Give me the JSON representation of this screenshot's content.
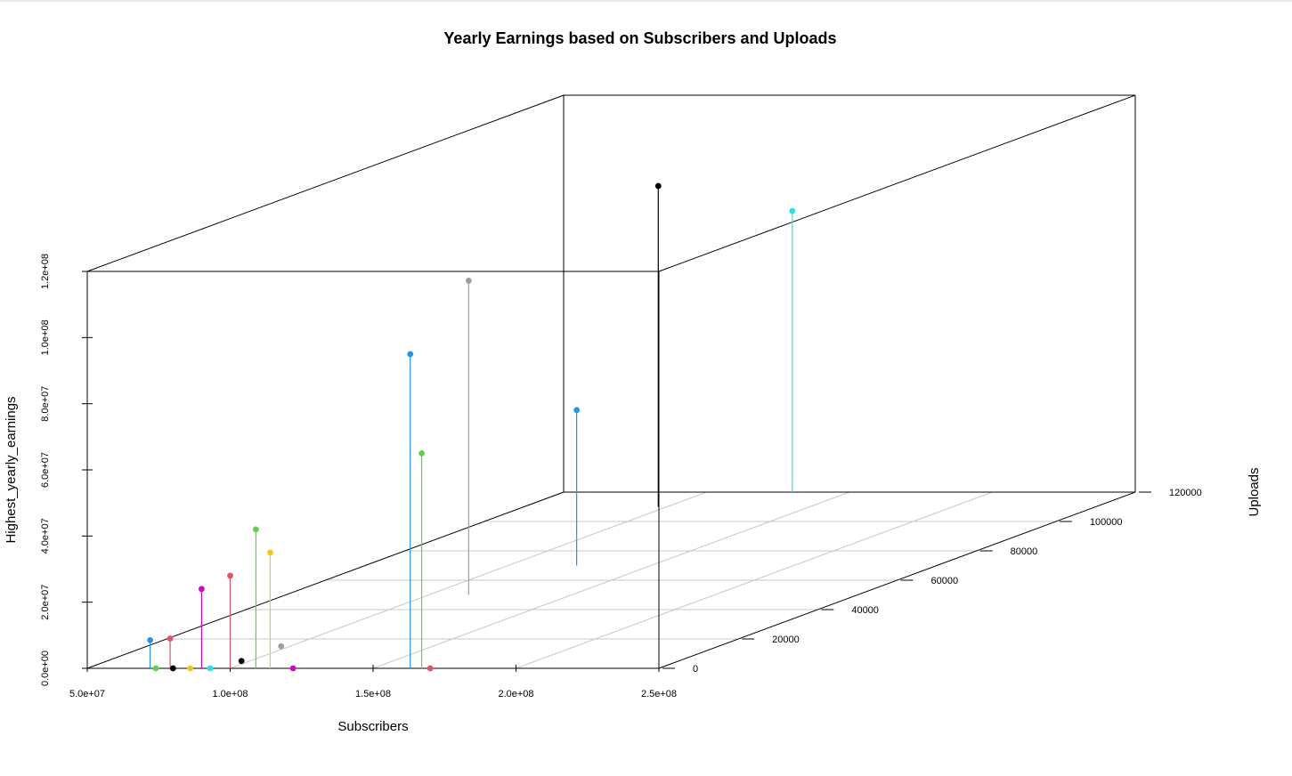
{
  "chart_data": {
    "type": "scatter3d",
    "title": "Yearly Earnings based on Subscribers and Uploads",
    "xlabel": "Subscribers",
    "ylabel": "Uploads",
    "zlabel": "Highest_yearly_earnings",
    "xlim": [
      50000000,
      250000000
    ],
    "ylim": [
      0,
      120000
    ],
    "zlim": [
      0,
      120000000
    ],
    "x_ticks": [
      "5.0e+07",
      "1.0e+08",
      "1.5e+08",
      "2.0e+08",
      "2.5e+08"
    ],
    "y_ticks": [
      "0",
      "20000",
      "40000",
      "60000",
      "80000",
      "100000",
      "120000"
    ],
    "z_ticks": [
      "0.0e+00",
      "2.0e+07",
      "4.0e+07",
      "6.0e+07",
      "8.0e+07",
      "1.0e+08",
      "1.2e+08"
    ],
    "grid": true,
    "point_style": "drop-lines to base",
    "points": [
      {
        "x": 72000000,
        "y": 0,
        "z": 8500000,
        "color": "#2297E6"
      },
      {
        "x": 79000000,
        "y": 0,
        "z": 9000000,
        "color": "#DF536B"
      },
      {
        "x": 74000000,
        "y": 0,
        "z": 0,
        "color": "#61D04F"
      },
      {
        "x": 80000000,
        "y": 0,
        "z": 0,
        "color": "#000000"
      },
      {
        "x": 86000000,
        "y": 0,
        "z": 0,
        "color": "#F5C710"
      },
      {
        "x": 93000000,
        "y": 0,
        "z": 0,
        "color": "#28E2E5"
      },
      {
        "x": 90000000,
        "y": 0,
        "z": 24000000,
        "color": "#CD0BBC"
      },
      {
        "x": 100000000,
        "y": 0,
        "z": 28000000,
        "color": "#DF536B"
      },
      {
        "x": 109000000,
        "y": 0,
        "z": 42000000,
        "color": "#61D04F"
      },
      {
        "x": 114000000,
        "y": 0,
        "z": 35000000,
        "color": "#F5C710"
      },
      {
        "x": 122000000,
        "y": 0,
        "z": 0,
        "color": "#CD0BBC"
      },
      {
        "x": 163000000,
        "y": 0,
        "z": 95000000,
        "color": "#2297E6"
      },
      {
        "x": 167000000,
        "y": 0,
        "z": 65000000,
        "color": "#61D04F"
      },
      {
        "x": 170000000,
        "y": 0,
        "z": 0,
        "color": "#DF536B"
      },
      {
        "x": 97000000,
        "y": 5000,
        "z": 0,
        "color": "#000000"
      },
      {
        "x": 97000000,
        "y": 15000,
        "z": 0,
        "color": "#9E9E9E"
      },
      {
        "x": 114000000,
        "y": 50000,
        "z": 95000000,
        "color": "#9E9E9E"
      },
      {
        "x": 124000000,
        "y": 70000,
        "z": 47000000,
        "color": "#2297E6"
      },
      {
        "x": 97000000,
        "y": 110000,
        "z": 97000000,
        "color": "#000000"
      },
      {
        "x": 130000000,
        "y": 120000,
        "z": 85000000,
        "color": "#28E2E5"
      }
    ]
  }
}
